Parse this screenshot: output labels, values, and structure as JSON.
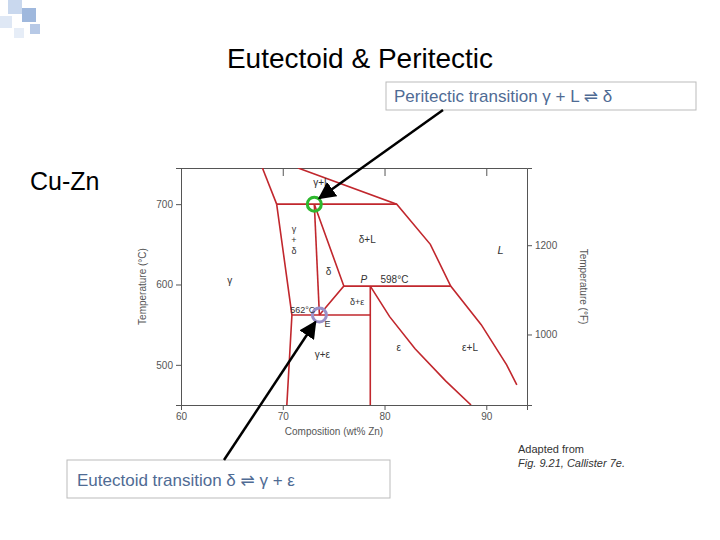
{
  "chart_data": {
    "type": "line",
    "title": "Eutectoid & Peritectic",
    "subtitle": "Cu-Zn",
    "x_label": "Composition (wt% Zn)",
    "y_label": "Temperature (°C)",
    "y2_label": "Temperature (°F)",
    "annotations": [
      "Peritectic transition γ + L ⇌ δ",
      "Eutectoid transition δ ⇌ γ + ε"
    ],
    "source": [
      "Adapted from",
      "Fig. 9.21, Callister 7e."
    ],
    "region_labels": [
      "γ+L",
      "γ+δ",
      "δ",
      "δ+L",
      "L",
      "γ",
      "γ+ε",
      "ε",
      "ε+L",
      "δ+ε",
      "P",
      "598°C",
      "562°C",
      "E"
    ],
    "xlim": [
      60,
      94
    ],
    "xticks": [
      60,
      70,
      80,
      90
    ],
    "ylim": [
      450,
      745
    ],
    "yticks": [
      500,
      600,
      700
    ],
    "y2lim": [
      842,
      1373
    ],
    "y2ticks": [
      1000,
      1200
    ],
    "color": "#c1272d",
    "series": [
      {
        "x": [
          68.0,
          69.4
        ],
        "values": [
          745,
          700
        ]
      },
      {
        "x": [
          71.5,
          81.2,
          84.5,
          86.5,
          89.5,
          92.0,
          93.0
        ],
        "values": [
          745,
          700,
          650,
          598,
          550,
          500,
          475
        ]
      },
      {
        "x": [
          69.4,
          81.2
        ],
        "values": [
          700,
          700
        ]
      },
      {
        "x": [
          69.4,
          70.9,
          70.4
        ],
        "values": [
          700,
          562,
          450
        ]
      },
      {
        "x": [
          73.1,
          73.6
        ],
        "values": [
          700,
          562
        ]
      },
      {
        "x": [
          73.1,
          76.0,
          73.6
        ],
        "values": [
          700,
          598,
          562
        ]
      },
      {
        "x": [
          76.0,
          86.5
        ],
        "values": [
          598,
          598
        ]
      },
      {
        "x": [
          78.6,
          78.6
        ],
        "values": [
          598,
          450
        ]
      },
      {
        "x": [
          78.6,
          80.5,
          83.0,
          86.0,
          88.5
        ],
        "values": [
          598,
          560,
          520,
          480,
          450
        ]
      },
      {
        "x": [
          70.9,
          78.6
        ],
        "values": [
          562,
          562
        ]
      }
    ],
    "points": [
      {
        "x": 73.1,
        "y": 700,
        "color": "#2eb82e"
      },
      {
        "x": 73.6,
        "y": 562,
        "color": "#9a90c8"
      }
    ]
  }
}
